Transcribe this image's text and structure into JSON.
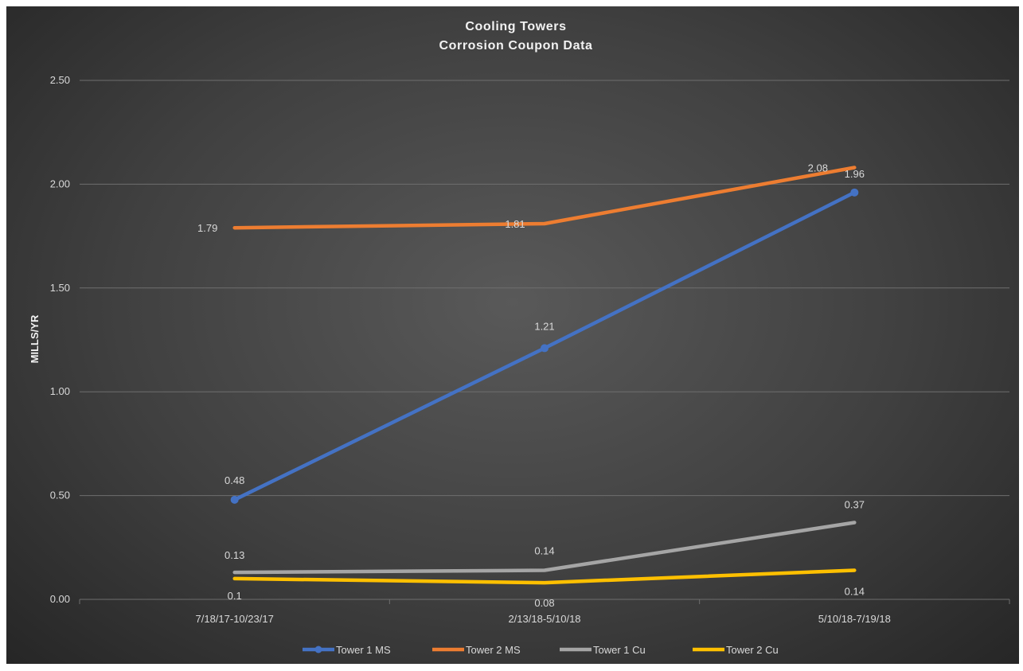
{
  "chart_data": {
    "type": "line",
    "title": "Cooling Towers",
    "subtitle": "Corrosion Coupon Data",
    "xlabel": "",
    "ylabel": "MILLS/YR",
    "categories": [
      "7/18/17-10/23/17",
      "2/13/18-5/10/18",
      "5/10/18-7/19/18"
    ],
    "ylim": [
      0,
      2.5
    ],
    "yticks": [
      "0.00",
      "0.50",
      "1.00",
      "1.50",
      "2.00",
      "2.50"
    ],
    "grid": true,
    "legend_position": "bottom",
    "series": [
      {
        "name": "Tower 1 MS",
        "values": [
          0.48,
          1.21,
          1.96
        ],
        "labels": [
          "0.48",
          "1.21",
          "1.96"
        ],
        "color": "#4472c4",
        "markers": true
      },
      {
        "name": "Tower 2 MS",
        "values": [
          1.79,
          1.81,
          2.08
        ],
        "labels": [
          "1.79",
          "1.81",
          "2.08"
        ],
        "color": "#ed7d31",
        "markers": false
      },
      {
        "name": "Tower 1 Cu",
        "values": [
          0.13,
          0.14,
          0.37
        ],
        "labels": [
          "0.13",
          "0.14",
          "0.37"
        ],
        "color": "#a5a5a5",
        "markers": false
      },
      {
        "name": "Tower 2 Cu",
        "values": [
          0.1,
          0.08,
          0.14
        ],
        "labels": [
          "0.1",
          "0.08",
          "0.14"
        ],
        "color": "#ffc000",
        "markers": false
      }
    ]
  }
}
